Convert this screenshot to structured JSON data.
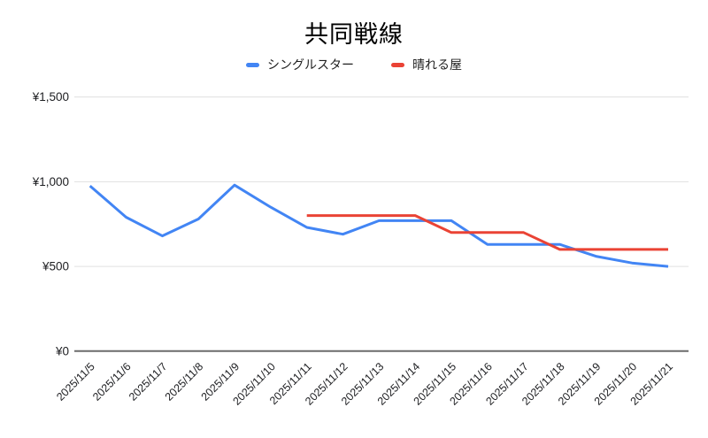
{
  "chart": {
    "title": "共同戦線",
    "legend_labels": [
      "シングルスター",
      "晴れる屋"
    ]
  },
  "chart_data": {
    "type": "line",
    "title": "共同戦線",
    "categories": [
      "2025/11/5",
      "2025/11/6",
      "2025/11/7",
      "2025/11/8",
      "2025/11/9",
      "2025/11/10",
      "2025/11/11",
      "2025/11/12",
      "2025/11/13",
      "2025/11/14",
      "2025/11/15",
      "2025/11/16",
      "2025/11/17",
      "2025/11/18",
      "2025/11/19",
      "2025/11/20",
      "2025/11/21"
    ],
    "series": [
      {
        "name": "シングルスター",
        "color": "#4285f4",
        "values": [
          975,
          790,
          680,
          780,
          980,
          850,
          730,
          690,
          770,
          770,
          770,
          630,
          630,
          630,
          560,
          520,
          500
        ]
      },
      {
        "name": "晴れる屋",
        "color": "#ea4335",
        "values": [
          null,
          null,
          null,
          null,
          null,
          null,
          800,
          800,
          800,
          800,
          700,
          700,
          700,
          600,
          600,
          600,
          600
        ]
      }
    ],
    "xlabel": "",
    "ylabel": "",
    "y_ticks": [
      {
        "label": "¥0",
        "value": 0
      },
      {
        "label": "¥500",
        "value": 500
      },
      {
        "label": "¥1,000",
        "value": 1000
      },
      {
        "label": "¥1,500",
        "value": 1500
      }
    ],
    "ylim": [
      0,
      1500
    ],
    "currency": "¥",
    "grid": "horizontal-only",
    "legend_position": "top",
    "colors": {
      "gridline": "#e0e0e0",
      "axis_line": "#6b6b6b",
      "tick_text": "#202124",
      "title_text": "#000000",
      "background": "#ffffff"
    }
  }
}
